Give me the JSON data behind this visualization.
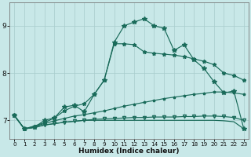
{
  "x": [
    0,
    1,
    2,
    3,
    4,
    5,
    6,
    7,
    8,
    9,
    10,
    11,
    12,
    13,
    14,
    15,
    16,
    17,
    18,
    19,
    20,
    21,
    22,
    23
  ],
  "line_jagged": [
    7.1,
    6.82,
    6.85,
    7.0,
    7.05,
    7.28,
    7.32,
    7.18,
    7.55,
    7.85,
    8.65,
    9.0,
    9.08,
    9.15,
    9.0,
    8.95,
    8.48,
    8.6,
    8.28,
    8.1,
    7.82,
    7.58,
    7.62,
    6.82
  ],
  "line_smooth": [
    7.1,
    6.82,
    6.88,
    6.95,
    7.05,
    7.2,
    7.3,
    7.35,
    7.55,
    7.85,
    8.62,
    8.62,
    8.6,
    8.45,
    8.42,
    8.4,
    8.38,
    8.35,
    8.3,
    8.25,
    8.18,
    8.0,
    7.95,
    7.85
  ],
  "line_avg1": [
    7.1,
    6.82,
    6.87,
    6.93,
    6.99,
    7.04,
    7.09,
    7.12,
    7.16,
    7.2,
    7.25,
    7.3,
    7.34,
    7.38,
    7.42,
    7.46,
    7.49,
    7.52,
    7.55,
    7.57,
    7.6,
    7.6,
    7.58,
    7.55
  ],
  "line_avg2": [
    7.1,
    6.82,
    6.85,
    6.9,
    6.93,
    6.96,
    6.98,
    7.0,
    7.02,
    7.03,
    7.04,
    7.05,
    7.06,
    7.06,
    7.07,
    7.07,
    7.07,
    7.08,
    7.08,
    7.09,
    7.09,
    7.08,
    7.06,
    7.0
  ],
  "line_flat": [
    7.1,
    6.82,
    6.85,
    6.9,
    6.93,
    6.96,
    6.98,
    7.0,
    7.0,
    7.0,
    7.0,
    7.0,
    7.0,
    7.0,
    7.0,
    7.0,
    7.0,
    7.0,
    7.0,
    7.0,
    7.0,
    6.99,
    6.97,
    6.82
  ],
  "marker_jagged": [
    0,
    1,
    2,
    3,
    4,
    5,
    6,
    7,
    8,
    9,
    10,
    11,
    12,
    13,
    14,
    15,
    16,
    17,
    18,
    19,
    20,
    21,
    22,
    23
  ],
  "marker_smooth": [
    0,
    1,
    2,
    3,
    4,
    5,
    6,
    7,
    8,
    9,
    10,
    11,
    12,
    13,
    14,
    15,
    16,
    17,
    18,
    19,
    20,
    21,
    22,
    23
  ],
  "bg_color": "#c8e8e8",
  "line_color": "#1a6b5a",
  "grid_color": "#a8cccc",
  "xlabel": "Humidex (Indice chaleur)",
  "yticks": [
    7,
    8,
    9
  ],
  "xlim": [
    -0.5,
    23.5
  ],
  "ylim": [
    6.6,
    9.5
  ]
}
